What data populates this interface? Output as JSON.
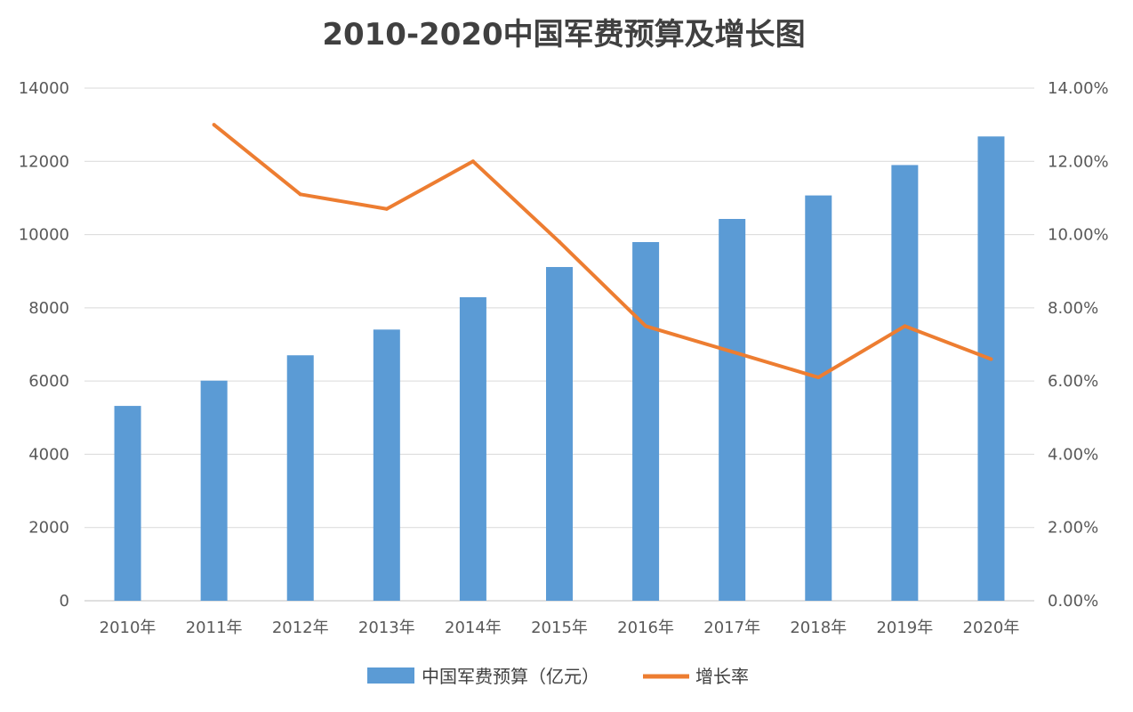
{
  "chart_data": {
    "type": "bar+line",
    "title": "2010-2020中国军费预算及增长图",
    "categories": [
      "2010年",
      "2011年",
      "2012年",
      "2013年",
      "2014年",
      "2015年",
      "2016年",
      "2017年",
      "2018年",
      "2019年",
      "2020年"
    ],
    "series": [
      {
        "name": "中国军费预算（亿元）",
        "type": "bar",
        "axis": "left",
        "color": "#5B9BD5",
        "values": [
          5321,
          6011,
          6703,
          7406,
          8290,
          9114,
          9795,
          10427,
          11069,
          11899,
          12680
        ]
      },
      {
        "name": "增长率",
        "type": "line",
        "axis": "right",
        "color": "#ED7D31",
        "values": [
          null,
          13.0,
          11.1,
          10.7,
          12.0,
          9.8,
          7.5,
          6.8,
          6.1,
          7.5,
          6.6
        ]
      }
    ],
    "left_axis": {
      "range": [
        0,
        14000
      ],
      "ticks": [
        "0",
        "2000",
        "4000",
        "6000",
        "8000",
        "10000",
        "12000",
        "14000"
      ]
    },
    "right_axis": {
      "range": [
        0,
        14
      ],
      "ticks": [
        "0.00%",
        "2.00%",
        "4.00%",
        "6.00%",
        "8.00%",
        "10.00%",
        "12.00%",
        "14.00%"
      ]
    },
    "grid": true,
    "legend": "bottom-center"
  }
}
